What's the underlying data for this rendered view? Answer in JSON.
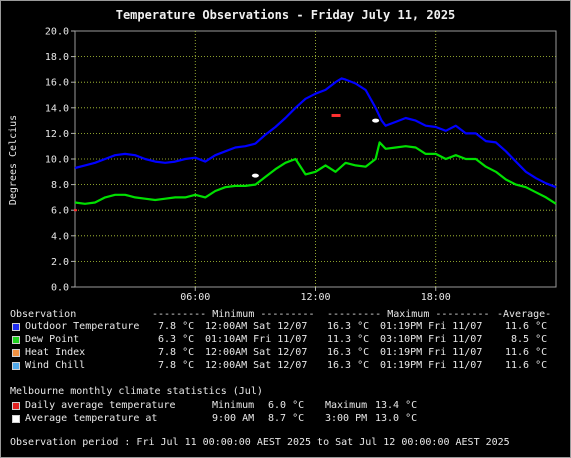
{
  "chart_data": {
    "type": "line",
    "title": "Temperature Observations - Friday July 11, 2025",
    "ylabel": "Degrees Celcius",
    "xlabel": "",
    "ylim": [
      0,
      20
    ],
    "xlim": [
      0,
      24
    ],
    "yticks": [
      "0.0",
      "2.0",
      "4.0",
      "6.0",
      "8.0",
      "10.0",
      "12.0",
      "14.0",
      "16.0",
      "18.0",
      "20.0"
    ],
    "xticks": [
      {
        "x": 6,
        "label": "06:00"
      },
      {
        "x": 12,
        "label": "12:00"
      },
      {
        "x": 18,
        "label": "18:00"
      }
    ],
    "grid": true,
    "series": [
      {
        "name": "Outdoor Temperature",
        "color": "#0000ff",
        "x": [
          0,
          0.5,
          1,
          1.5,
          2,
          2.5,
          3,
          3.5,
          4,
          4.5,
          5,
          5.5,
          6,
          6.5,
          7,
          7.5,
          8,
          8.5,
          9,
          9.5,
          10,
          10.5,
          11,
          11.5,
          12,
          12.5,
          13,
          13.3,
          13.5,
          14,
          14.5,
          15,
          15.3,
          15.5,
          16,
          16.5,
          17,
          17.5,
          18,
          18.5,
          19,
          19.5,
          20,
          20.5,
          21,
          21.5,
          22,
          22.5,
          23,
          23.5,
          24
        ],
        "values": [
          9.3,
          9.5,
          9.7,
          10.0,
          10.3,
          10.4,
          10.3,
          10.0,
          9.8,
          9.7,
          9.8,
          10.0,
          10.1,
          9.8,
          10.3,
          10.6,
          10.9,
          11.0,
          11.2,
          11.9,
          12.5,
          13.2,
          14.0,
          14.7,
          15.1,
          15.4,
          16.0,
          16.3,
          16.2,
          15.9,
          15.4,
          14.0,
          13.0,
          12.6,
          12.9,
          13.2,
          13.0,
          12.6,
          12.5,
          12.2,
          12.6,
          12.0,
          12.0,
          11.4,
          11.3,
          10.6,
          9.8,
          9.0,
          8.5,
          8.1,
          7.8
        ]
      },
      {
        "name": "Dew Point",
        "color": "#00e000",
        "x": [
          0,
          0.5,
          1,
          1.5,
          2,
          2.5,
          3,
          3.5,
          4,
          4.5,
          5,
          5.5,
          6,
          6.5,
          7,
          7.5,
          8,
          8.5,
          9,
          9.5,
          10,
          10.5,
          11,
          11.5,
          12,
          12.5,
          13,
          13.5,
          14,
          14.5,
          15,
          15.2,
          15.5,
          16,
          16.5,
          17,
          17.5,
          18,
          18.5,
          19,
          19.5,
          20,
          20.5,
          21,
          21.5,
          22,
          22.5,
          23,
          23.5,
          24
        ],
        "values": [
          6.6,
          6.5,
          6.6,
          7.0,
          7.2,
          7.2,
          7.0,
          6.9,
          6.8,
          6.9,
          7.0,
          7.0,
          7.2,
          7.0,
          7.5,
          7.8,
          7.9,
          7.9,
          8.0,
          8.6,
          9.2,
          9.7,
          10.0,
          8.8,
          9.0,
          9.5,
          9.0,
          9.7,
          9.5,
          9.4,
          10.0,
          11.3,
          10.8,
          10.9,
          11.0,
          10.9,
          10.4,
          10.4,
          10.0,
          10.3,
          10.0,
          10.0,
          9.4,
          9.0,
          8.4,
          8.0,
          7.8,
          7.4,
          7.0,
          6.5
        ]
      }
    ],
    "markers": [
      {
        "name": "Daily average temperature",
        "color": "#ff3030",
        "x": 13.0,
        "y": 13.4,
        "shape": "dash"
      },
      {
        "name": "Average temperature at 9:00 AM",
        "color": "#ffffff",
        "x": 9.0,
        "y": 8.7,
        "shape": "dot"
      },
      {
        "name": "Average temperature at 3:00 PM",
        "color": "#ffffff",
        "x": 15.0,
        "y": 13.0,
        "shape": "dot"
      },
      {
        "name": "Minimum 6.0",
        "color": "#ff3030",
        "x": 0.0,
        "y": 6.0,
        "shape": "tick"
      }
    ]
  },
  "legend": {
    "header": {
      "col_obs": "Observation",
      "col_min": "--------- Minimum ---------",
      "col_max": "--------- Maximum ---------",
      "col_avg": "-Average-"
    },
    "rows": [
      {
        "color": "#1e2cf0",
        "label": "Outdoor Temperature",
        "min": " 7.8 °C",
        "min_time": "12:00AM Sat 12/07",
        "max": "16.3 °C",
        "max_time": "01:19PM Fri 11/07",
        "avg": "11.6 °C"
      },
      {
        "color": "#20d020",
        "label": "Dew Point",
        "min": " 6.3 °C",
        "min_time": "01:10AM Fri 11/07",
        "max": "11.3 °C",
        "max_time": "03:10PM Fri 11/07",
        "avg": " 8.5 °C"
      },
      {
        "color": "#f09040",
        "label": "Heat Index",
        "min": " 7.8 °C",
        "min_time": "12:00AM Sat 12/07",
        "max": "16.3 °C",
        "max_time": "01:19PM Fri 11/07",
        "avg": "11.6 °C"
      },
      {
        "color": "#50a8e8",
        "label": "Wind Chill",
        "min": " 7.8 °C",
        "min_time": "12:00AM Sat 12/07",
        "max": "16.3 °C",
        "max_time": "01:19PM Fri 11/07",
        "avg": "11.6 °C"
      }
    ]
  },
  "climate": {
    "heading": "Melbourne monthly climate statistics (Jul)",
    "rows": [
      {
        "color": "#e02020",
        "label": "Daily average temperature",
        "a_label": "Minimum",
        "a_value": " 6.0 °C",
        "b_label": "Maximum",
        "b_value": "13.4 °C"
      },
      {
        "color": "#ffffff",
        "label": "Average temperature at",
        "a_label": "9:00 AM",
        "a_value": " 8.7 °C",
        "b_label": "3:00 PM",
        "b_value": "13.0 °C"
      }
    ]
  },
  "footer": {
    "period": "Observation period : Fri Jul 11 00:00:00 AEST 2025 to Sat Jul 12 00:00:00 AEST 2025"
  }
}
